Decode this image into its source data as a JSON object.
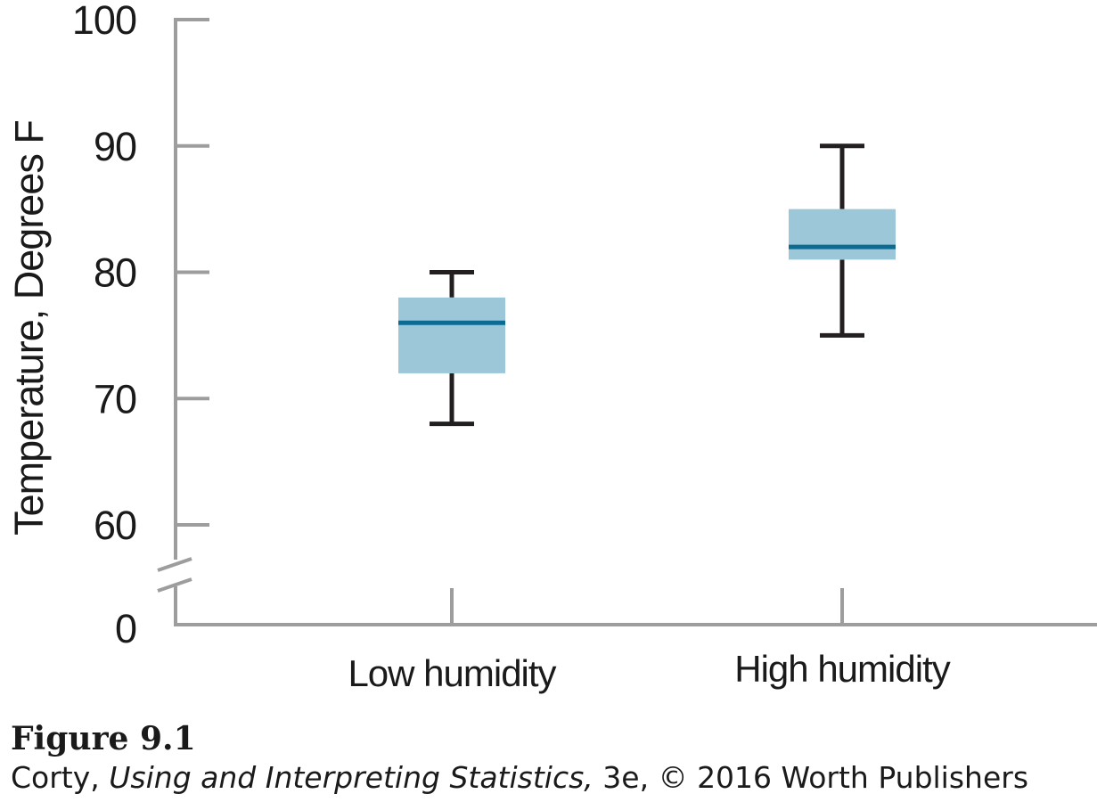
{
  "chart_data": {
    "type": "boxplot",
    "ylabel": "Temperature, Degrees F",
    "xlabel": "",
    "ylim": [
      55,
      100
    ],
    "y_ticks": [
      60,
      70,
      80,
      90,
      100
    ],
    "y_zero_label": "0",
    "axis_break": true,
    "categories": [
      "Low humidity",
      "High humidity"
    ],
    "boxes": [
      {
        "category": "Low humidity",
        "min": 68,
        "q1": 72,
        "median": 76,
        "q3": 78,
        "max": 80
      },
      {
        "category": "High humidity",
        "min": 75,
        "q1": 81,
        "median": 82,
        "q3": 85,
        "max": 90
      }
    ],
    "colors": {
      "box_fill": "#9bc7d8",
      "median_line": "#0c6b93",
      "whisker": "#231f20",
      "axis": "#9d9d9d"
    },
    "grid": false,
    "legend": "none"
  },
  "caption": {
    "figure_label": "Figure 9.1",
    "author": "Corty,",
    "book_title": "Using and Interpreting Statistics,",
    "rest": "3e, © 2016 Worth Publishers"
  }
}
